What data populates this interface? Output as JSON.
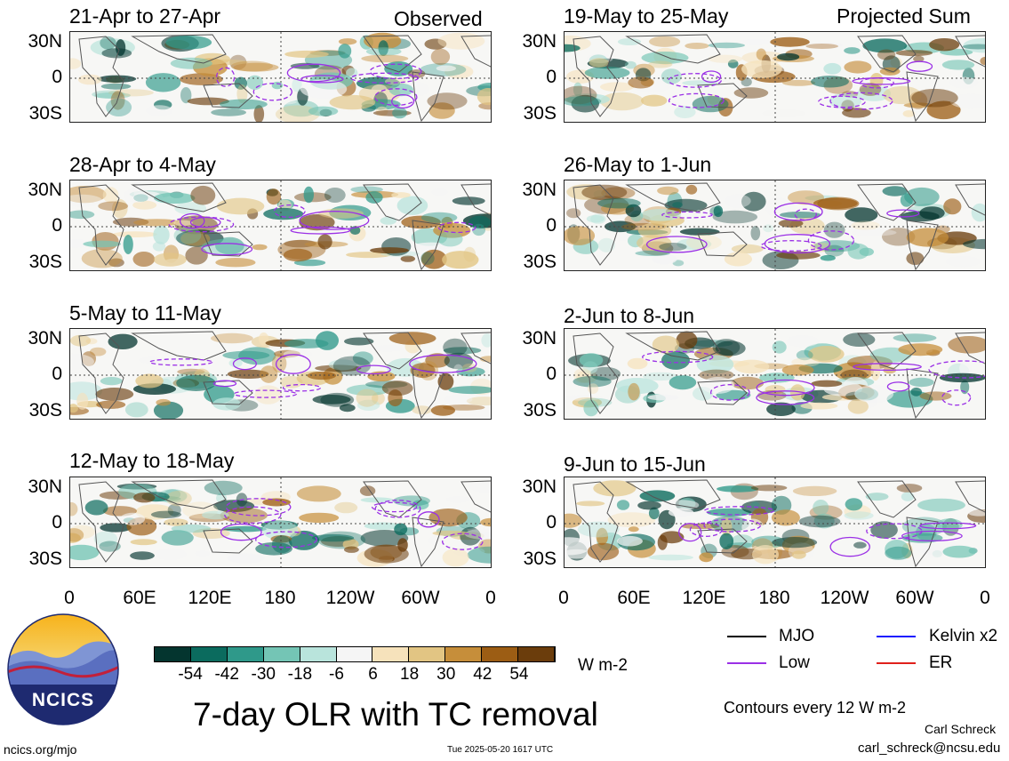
{
  "headers": {
    "left": "Observed",
    "right": "Projected Sum"
  },
  "panels": {
    "left": [
      {
        "title": "21-Apr to 27-Apr"
      },
      {
        "title": "28-Apr to 4-May"
      },
      {
        "title": "5-May to 11-May"
      },
      {
        "title": "12-May to 18-May"
      }
    ],
    "right": [
      {
        "title": "19-May to 25-May"
      },
      {
        "title": "26-May to 1-Jun"
      },
      {
        "title": "2-Jun to 8-Jun"
      },
      {
        "title": "9-Jun to 15-Jun"
      }
    ]
  },
  "axes": {
    "lat_labels": [
      "30N",
      "0",
      "30S"
    ],
    "lon_labels": [
      "0",
      "60E",
      "120E",
      "180",
      "120W",
      "60W",
      "0"
    ]
  },
  "colorbar": {
    "colors": [
      "#04352f",
      "#0b6b5e",
      "#2f998a",
      "#74c5b5",
      "#b9e4dc",
      "#f5f5f5",
      "#f6e2bb",
      "#e2c583",
      "#c68e3a",
      "#9c5d14",
      "#6b3d0c"
    ],
    "labels": [
      "-54",
      "-42",
      "-30",
      "-18",
      "-6",
      "6",
      "18",
      "30",
      "42",
      "54"
    ],
    "units": "W m-2"
  },
  "legend": {
    "items": [
      {
        "label": "MJO",
        "color": "#000000"
      },
      {
        "label": "Kelvin x2",
        "color": "#1a1aff"
      },
      {
        "label": "Low",
        "color": "#9b30e6"
      },
      {
        "label": "ER",
        "color": "#e0201b"
      }
    ],
    "contours_note": "Contours every 12 W m-2"
  },
  "logo": {
    "text": "NCICS"
  },
  "main_title": "7-day OLR with TC removal",
  "footer": {
    "site": "ncics.org/mjo",
    "timestamp": "Tue 2025-05-20 1617 UTC",
    "author": "Carl Schreck",
    "email": "carl_schreck@ncsu.edu"
  }
}
